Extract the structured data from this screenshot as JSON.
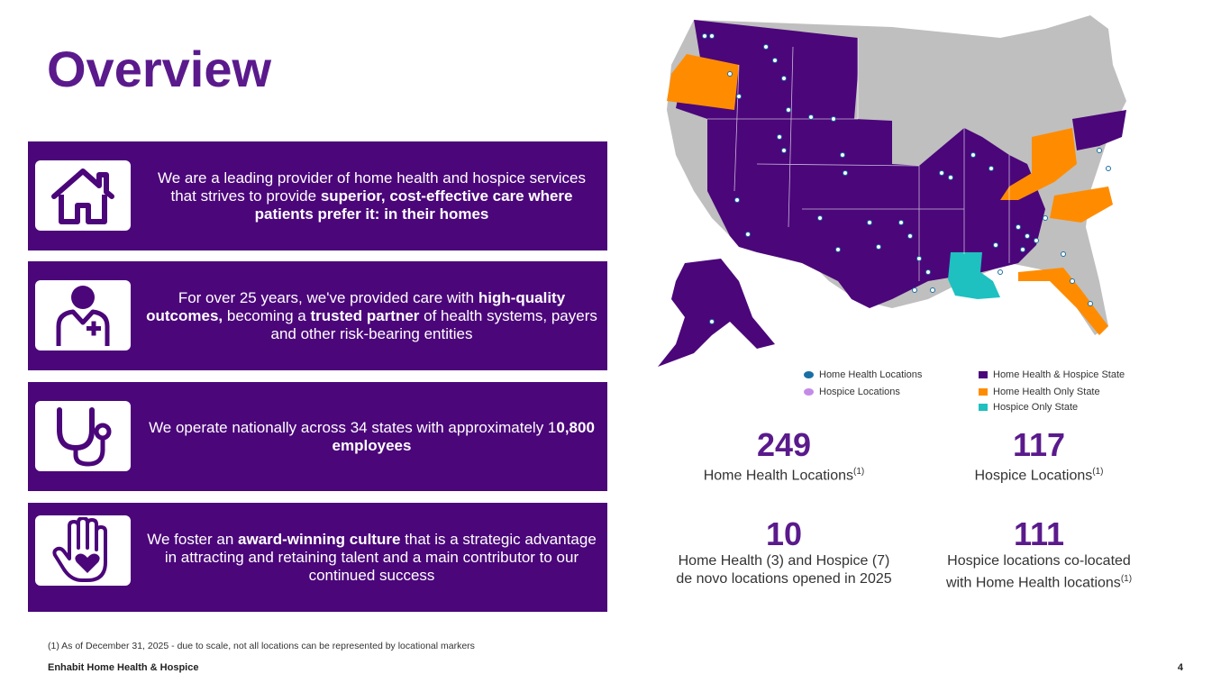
{
  "title": "Overview",
  "panels": [
    {
      "icon": "home-icon",
      "pre": "We are a leading provider of home health and hospice services that strives to provide ",
      "bold1": "superior, cost-effective care where patients prefer it: in their homes",
      "mid": "",
      "bold2": "",
      "post": ""
    },
    {
      "icon": "caregiver-icon",
      "pre": "For over 25 years, we've provided care with ",
      "bold1": "high-quality outcomes,",
      "mid": " becoming a ",
      "bold2": "trusted partner",
      "post": " of health systems, payers and other risk-bearing entities"
    },
    {
      "icon": "stethoscope-icon",
      "pre": "We operate nationally across 34 states with approximately 1",
      "bold1": "0,800 employees",
      "mid": "",
      "bold2": "",
      "post": ""
    },
    {
      "icon": "hand-heart-icon",
      "pre": "We foster an ",
      "bold1": "award-winning culture",
      "mid": " that is a strategic advantage in attracting and retaining talent and a main contributor to our continued success",
      "bold2": "",
      "post": ""
    }
  ],
  "legend": {
    "home_health_locations": "Home Health Locations",
    "hospice_locations": "Hospice Locations",
    "hh_hospice_state": "Home Health & Hospice State",
    "hh_only_state": "Home Health Only State",
    "hospice_only_state": "Hospice Only State"
  },
  "colors": {
    "purple": "#4b067a",
    "title_purple": "#5a1a8c",
    "orange": "#ff8c00",
    "teal": "#1fc0c0",
    "grey_state": "#bfbfbf",
    "home_health_marker": "#1a6fa3",
    "hospice_marker": "#c58ae8"
  },
  "stats": [
    {
      "num": "249",
      "label": "Home Health Locations",
      "sup": "(1)"
    },
    {
      "num": "117",
      "label": "Hospice Locations",
      "sup": "(1)"
    },
    {
      "num": "10",
      "label_line1": "Home Health (3) and Hospice (7)",
      "label_line2": "de novo locations opened in 2025"
    },
    {
      "num": "111",
      "label_line1": "Hospice locations co-located",
      "label_line2": "with Home Health locations",
      "sup": "(1)"
    }
  ],
  "footnote": "(1) As of December 31, 2025 - due to scale, not all locations can be represented by locational markers",
  "footer": "Enhabit Home Health & Hospice",
  "page_number": "4"
}
